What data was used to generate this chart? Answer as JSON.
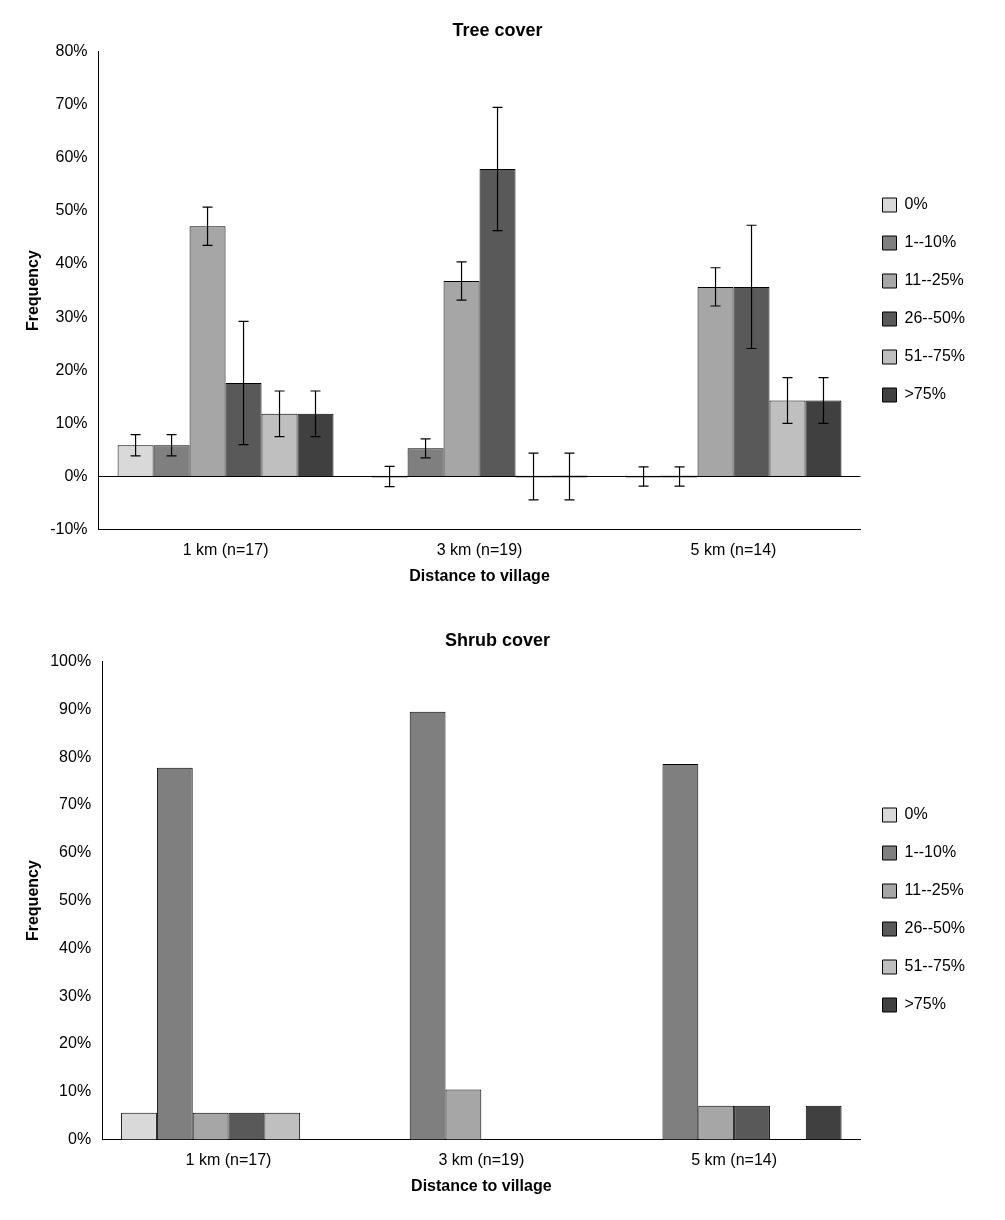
{
  "chart_data": [
    {
      "type": "bar",
      "title": "Tree cover",
      "xlabel": "Distance to village",
      "ylabel": "Frequency",
      "categories": [
        "1 km (n=17)",
        "3 km (n=19)",
        "5 km (n=14)"
      ],
      "legend": "right",
      "grid": false,
      "ref_lines": [
        {
          "axis": "y",
          "value": 0,
          "color": "#000000"
        }
      ],
      "ylim": [
        -0.1,
        0.8
      ],
      "yticks": [
        {
          "value": -0.1,
          "label": "-10%"
        },
        {
          "value": 0,
          "label": "0%"
        },
        {
          "value": 0.1,
          "label": "10%"
        },
        {
          "value": 0.2,
          "label": "20%"
        },
        {
          "value": 0.3,
          "label": "30%"
        },
        {
          "value": 0.4,
          "label": "40%"
        },
        {
          "value": 0.5,
          "label": "50%"
        },
        {
          "value": 0.6,
          "label": "60%"
        },
        {
          "value": 0.7,
          "label": "70%"
        },
        {
          "value": 0.8,
          "label": "80%"
        }
      ],
      "series": [
        {
          "name": "0%",
          "color": "#d9d9d9",
          "values": [
            0.059,
            0,
            0
          ],
          "errors": [
            0.02,
            0.019,
            0.018
          ]
        },
        {
          "name": "1--10%",
          "color": "#7f7f7f",
          "values": [
            0.059,
            0.053,
            0
          ],
          "errors": [
            0.02,
            0.018,
            0.018
          ]
        },
        {
          "name": "11--25%",
          "color": "#a6a6a6",
          "values": [
            0.471,
            0.368,
            0.357
          ],
          "errors": [
            0.036,
            0.036,
            0.036
          ]
        },
        {
          "name": "26--50%",
          "color": "#595959",
          "values": [
            0.176,
            0.579,
            0.357
          ],
          "errors": [
            0.116,
            0.116,
            0.116
          ]
        },
        {
          "name": "51--75%",
          "color": "#bfbfbf",
          "values": [
            0.118,
            0,
            0.143
          ],
          "errors": [
            0.043,
            0.044,
            0.043
          ]
        },
        {
          "name": ">75%",
          "color": "#404040",
          "values": [
            0.118,
            0,
            0.143
          ],
          "errors": [
            0.043,
            0.044,
            0.043
          ]
        }
      ]
    },
    {
      "type": "bar",
      "title": "Shrub cover",
      "xlabel": "Distance to village",
      "ylabel": "Frequency",
      "categories": [
        "1 km (n=17)",
        "3 km (n=19)",
        "5 km (n=14)"
      ],
      "legend": "right",
      "grid": false,
      "ylim": [
        0,
        1
      ],
      "yticks": [
        {
          "value": 0,
          "label": "0%"
        },
        {
          "value": 0.1,
          "label": "10%"
        },
        {
          "value": 0.2,
          "label": "20%"
        },
        {
          "value": 0.3,
          "label": "30%"
        },
        {
          "value": 0.4,
          "label": "40%"
        },
        {
          "value": 0.5,
          "label": "50%"
        },
        {
          "value": 0.6,
          "label": "60%"
        },
        {
          "value": 0.7,
          "label": "70%"
        },
        {
          "value": 0.8,
          "label": "80%"
        },
        {
          "value": 0.9,
          "label": "90%"
        },
        {
          "value": 1,
          "label": "100%"
        }
      ],
      "series": [
        {
          "name": "0%",
          "color": "#d9d9d9",
          "values": [
            0.056,
            0,
            0
          ]
        },
        {
          "name": "1--10%",
          "color": "#7f7f7f",
          "values": [
            0.778,
            0.895,
            0.786
          ]
        },
        {
          "name": "11--25%",
          "color": "#a6a6a6",
          "values": [
            0.056,
            0.105,
            0.071
          ]
        },
        {
          "name": "26--50%",
          "color": "#595959",
          "values": [
            0.056,
            0,
            0.071
          ]
        },
        {
          "name": "51--75%",
          "color": "#bfbfbf",
          "values": [
            0.056,
            0,
            0
          ]
        },
        {
          "name": ">75%",
          "color": "#404040",
          "values": [
            0,
            0,
            0.071
          ]
        }
      ]
    }
  ]
}
